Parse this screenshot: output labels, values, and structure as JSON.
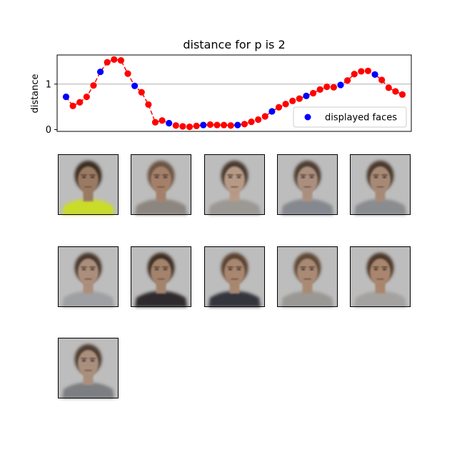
{
  "chart_data": {
    "type": "scatter",
    "title": "distance for p is 2",
    "xlabel": "",
    "ylabel": "distance",
    "x": [
      0,
      1,
      2,
      3,
      4,
      5,
      6,
      7,
      8,
      9,
      10,
      11,
      12,
      13,
      14,
      15,
      16,
      17,
      18,
      19,
      20,
      21,
      22,
      23,
      24,
      25,
      26,
      27,
      28,
      29,
      30,
      31,
      32,
      33,
      34,
      35,
      36,
      37,
      38,
      39,
      40,
      41,
      42,
      43,
      44,
      45,
      46,
      47,
      48,
      49
    ],
    "y": [
      0.72,
      0.52,
      0.6,
      0.72,
      0.97,
      1.27,
      1.48,
      1.54,
      1.52,
      1.23,
      0.96,
      0.82,
      0.55,
      0.16,
      0.2,
      0.14,
      0.09,
      0.07,
      0.06,
      0.08,
      0.1,
      0.11,
      0.1,
      0.1,
      0.09,
      0.1,
      0.12,
      0.17,
      0.22,
      0.29,
      0.4,
      0.49,
      0.56,
      0.63,
      0.68,
      0.74,
      0.8,
      0.88,
      0.94,
      0.93,
      0.98,
      1.08,
      1.22,
      1.28,
      1.29,
      1.21,
      1.09,
      0.92,
      0.84,
      0.77
    ],
    "displayed_indices": [
      0,
      5,
      10,
      15,
      20,
      25,
      30,
      35,
      40,
      45
    ],
    "ylim": [
      -0.04,
      1.64
    ],
    "xlim": [
      -1.3,
      50.3
    ],
    "yticks": [
      0,
      1
    ],
    "hline": 1,
    "line_style": "dashed",
    "line_color": "#ff0000",
    "point_color": "#ff0000",
    "displayed_color": "#0000ff",
    "legend": {
      "label": "displayed faces",
      "placement": "lower-right"
    }
  },
  "faces": [
    {
      "shirt": "#c9dc2a",
      "hair": "#3a2d22",
      "skin": "#9a7a62"
    },
    {
      "shirt": "#8d8680",
      "hair": "#6b5443",
      "skin": "#a4806a"
    },
    {
      "shirt": "#9c9894",
      "hair": "#4a3a2e",
      "skin": "#b79a86"
    },
    {
      "shirt": "#85888e",
      "hair": "#4e3c30",
      "skin": "#ab8f7e"
    },
    {
      "shirt": "#8a8c90",
      "hair": "#4a392c",
      "skin": "#a78a76"
    },
    {
      "shirt": "#9ea0a3",
      "hair": "#4a392d",
      "skin": "#ac8e7b"
    },
    {
      "shirt": "#2e2c2e",
      "hair": "#3e2e24",
      "skin": "#a4836c"
    },
    {
      "shirt": "#34363c",
      "hair": "#5a4332",
      "skin": "#a8866f"
    },
    {
      "shirt": "#999894",
      "hair": "#5e4936",
      "skin": "#a98a75"
    },
    {
      "shirt": "#a4a2a0",
      "hair": "#4c392c",
      "skin": "#a9866d"
    },
    {
      "shirt": "#7c7e82",
      "hair": "#4d3c30",
      "skin": "#ab8f7d"
    }
  ]
}
